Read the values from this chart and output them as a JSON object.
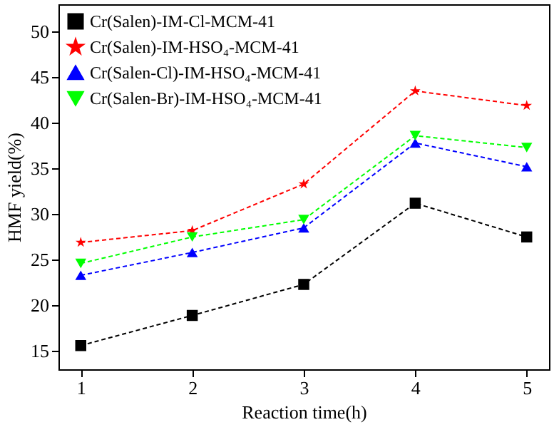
{
  "chart_data": {
    "type": "line",
    "xlabel": "Reaction time(h)",
    "ylabel": "HMF yield(%)",
    "x": [
      1,
      2,
      3,
      4,
      5
    ],
    "xlim": [
      0.8,
      5.2
    ],
    "xticks": [
      1,
      2,
      3,
      4,
      5
    ],
    "ylim": [
      13,
      53
    ],
    "yticks": [
      15,
      20,
      25,
      30,
      35,
      40,
      45,
      50
    ],
    "grid": false,
    "legend": "top left",
    "line_style": "dashed",
    "series": [
      {
        "name": "Cr(Salen)-IM-Cl-MCM-41",
        "color": "#000000",
        "marker": "square",
        "values": [
          15.6,
          18.9,
          22.3,
          31.2,
          27.5
        ]
      },
      {
        "name": "Cr(Salen)-IM-HSO₄-MCM-41",
        "color": "#ff0000",
        "marker": "star",
        "values": [
          26.9,
          28.2,
          33.3,
          43.5,
          41.9
        ]
      },
      {
        "name": "Cr(Salen-Cl)-IM-HSO₄-MCM-41",
        "color": "#0000ff",
        "marker": "triangle",
        "values": [
          23.3,
          25.8,
          28.5,
          37.8,
          35.2
        ]
      },
      {
        "name": "Cr(Salen-Br)-IM-HSO₄-MCM-41",
        "color": "#00ff00",
        "marker": "triangle-down",
        "values": [
          24.6,
          27.5,
          29.4,
          38.6,
          37.3
        ]
      }
    ]
  }
}
